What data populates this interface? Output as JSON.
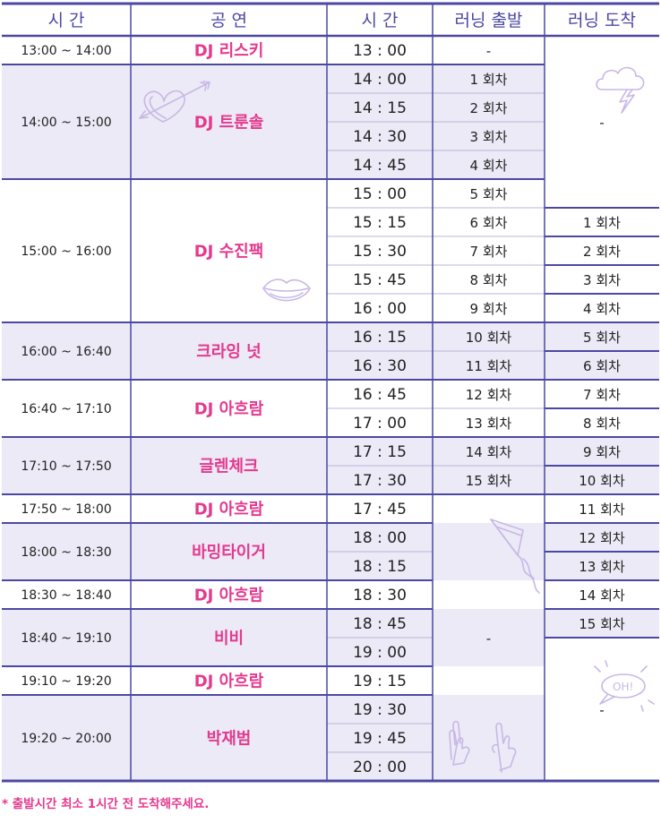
{
  "header": {
    "time_label": "시  간",
    "show_label": "공  연",
    "slot_label": "시  간",
    "depart_label": "러닝 출발",
    "arrive_label": "러닝 도착"
  },
  "performances": [
    {
      "period": "13:00 ~ 14:00",
      "name": "DJ 리스키",
      "shaded": false
    },
    {
      "period": "14:00 ~ 15:00",
      "name": "DJ 트룬솔",
      "shaded": true
    },
    {
      "period": "15:00 ~ 16:00",
      "name": "DJ 수진팩",
      "shaded": false
    },
    {
      "period": "16:00 ~ 16:40",
      "name": "크라잉 넛",
      "shaded": true
    },
    {
      "period": "16:40 ~ 17:10",
      "name": "DJ 아흐람",
      "shaded": false
    },
    {
      "period": "17:10 ~ 17:50",
      "name": "글렌체크",
      "shaded": true
    },
    {
      "period": "17:50 ~ 18:00",
      "name": "DJ 아흐람",
      "shaded": false
    },
    {
      "period": "18:00 ~ 18:30",
      "name": "바밍타이거",
      "shaded": true
    },
    {
      "period": "18:30 ~ 18:40",
      "name": "DJ 아흐람",
      "shaded": false
    },
    {
      "period": "18:40 ~ 19:10",
      "name": "비비",
      "shaded": true
    },
    {
      "period": "19:10 ~ 19:20",
      "name": "DJ 아흐람",
      "shaded": false
    },
    {
      "period": "19:20 ~ 20:00",
      "name": "박재범",
      "shaded": true
    }
  ],
  "slots": [
    "13 : 00",
    "14 : 00",
    "14 : 15",
    "14 : 30",
    "14 : 45",
    "15 : 00",
    "15 : 15",
    "15 : 30",
    "15 : 45",
    "16 : 00",
    "16 : 15",
    "16 : 30",
    "16 : 45",
    "17 : 00",
    "17 : 15",
    "17 : 30",
    "17 : 45",
    "18 : 00",
    "18 : 15",
    "18 : 30",
    "18 : 45",
    "19 : 00",
    "19 : 15",
    "19 : 30",
    "19 : 45",
    "20 : 00"
  ],
  "slot_counts": [
    1,
    4,
    5,
    2,
    2,
    2,
    1,
    2,
    1,
    2,
    1,
    3
  ],
  "departures": [
    "-",
    "1 회차",
    "2 회차",
    "3 회차",
    "4 회차",
    "5 회차",
    "6 회차",
    "7 회차",
    "8 회차",
    "9 회차",
    "10 회차",
    "11 회차",
    "12 회차",
    "13 회차",
    "14 회차",
    "15 회차",
    "-"
  ],
  "arrivals": [
    "-",
    "1 회차",
    "2 회차",
    "3 회차",
    "4 회차",
    "5 회차",
    "6 회차",
    "7 회차",
    "8 회차",
    "9 회차",
    "10 회차",
    "11 회차",
    "12 회차",
    "13 회차",
    "14 회차",
    "15 회차",
    "-"
  ],
  "note": "* 출발시간 최소 1시간 전 도착해주세요.",
  "colors": {
    "border": "#4b48a4",
    "grid": "#b8b6d8",
    "shade": "#ebeaf6",
    "header_text": "#4b48a4",
    "accent": "#e5398e",
    "doodle": "#c9b7e6",
    "text": "#222222"
  },
  "icons": [
    "heart-arrow-icon",
    "cloud-lightning-icon",
    "lips-icon",
    "kite-icon",
    "oh-bubble-icon",
    "rock-hands-icon"
  ]
}
